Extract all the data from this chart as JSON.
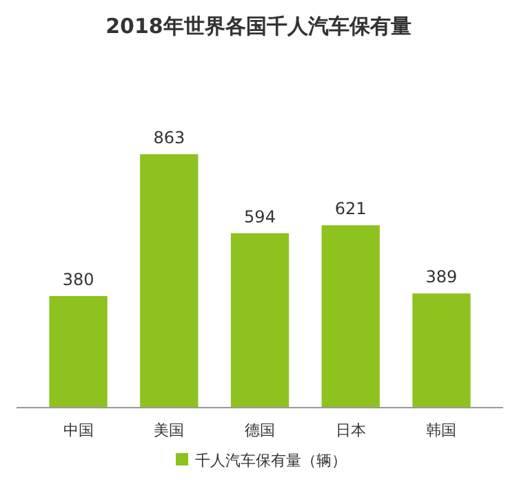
{
  "chart_data": {
    "type": "bar",
    "title": "2018年世界各国千人汽车保有量",
    "categories": [
      "中国",
      "美国",
      "德国",
      "日本",
      "韩国"
    ],
    "series": [
      {
        "name": "千人汽车保有量（辆）",
        "color": "#8dc21f",
        "values": [
          380,
          863,
          594,
          621,
          389
        ]
      }
    ],
    "data_labels": true,
    "legend": "bottom"
  }
}
